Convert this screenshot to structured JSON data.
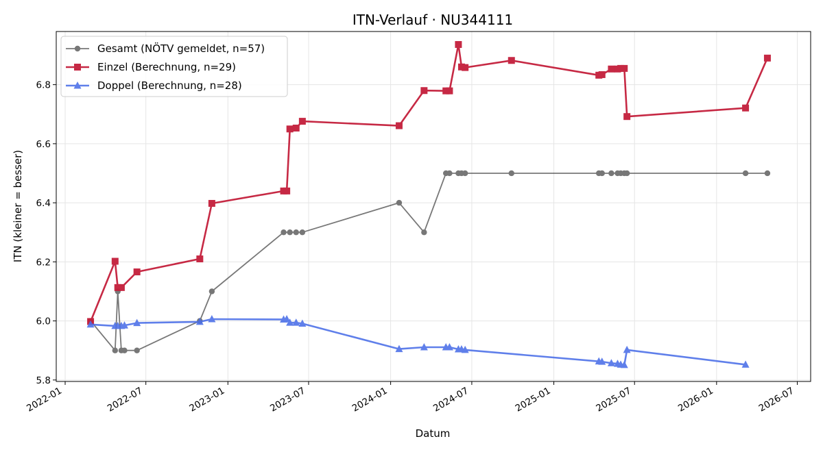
{
  "chart_data": {
    "type": "line",
    "title": "ITN-Verlauf · NU344111",
    "xlabel": "Datum",
    "ylabel": "ITN  (kleiner = besser)",
    "xlim": [
      "2021-12-12",
      "2026-07-31"
    ],
    "ylim": [
      5.795,
      6.98
    ],
    "x_ticks": [
      "2022-01",
      "2022-07",
      "2023-01",
      "2023-07",
      "2024-01",
      "2024-07",
      "2025-01",
      "2025-07",
      "2026-01",
      "2026-07"
    ],
    "y_ticks": [
      5.8,
      6.0,
      6.2,
      6.4,
      6.6,
      6.8
    ],
    "grid": true,
    "legend_position": "top-left",
    "series": [
      {
        "name": "Gesamt (NÖTV gemeldet, n=57)",
        "color": "#444444",
        "marker": "circle",
        "points": [
          {
            "x": "2022-02-27",
            "y": 6.0
          },
          {
            "x": "2022-04-23",
            "y": 5.9
          },
          {
            "x": "2022-04-29",
            "y": 6.1
          },
          {
            "x": "2022-05-07",
            "y": 5.9
          },
          {
            "x": "2022-05-14",
            "y": 5.9
          },
          {
            "x": "2022-06-11",
            "y": 5.9
          },
          {
            "x": "2022-10-30",
            "y": 6.0
          },
          {
            "x": "2022-11-26",
            "y": 6.1
          },
          {
            "x": "2023-05-06",
            "y": 6.3
          },
          {
            "x": "2023-05-20",
            "y": 6.3
          },
          {
            "x": "2023-06-03",
            "y": 6.3
          },
          {
            "x": "2023-06-17",
            "y": 6.3
          },
          {
            "x": "2024-01-20",
            "y": 6.4
          },
          {
            "x": "2024-03-16",
            "y": 6.3
          },
          {
            "x": "2024-05-04",
            "y": 6.5
          },
          {
            "x": "2024-05-12",
            "y": 6.5
          },
          {
            "x": "2024-06-01",
            "y": 6.5
          },
          {
            "x": "2024-06-08",
            "y": 6.5
          },
          {
            "x": "2024-06-16",
            "y": 6.5
          },
          {
            "x": "2024-09-28",
            "y": 6.5
          },
          {
            "x": "2025-04-12",
            "y": 6.5
          },
          {
            "x": "2025-04-19",
            "y": 6.5
          },
          {
            "x": "2025-05-10",
            "y": 6.5
          },
          {
            "x": "2025-05-24",
            "y": 6.5
          },
          {
            "x": "2025-05-31",
            "y": 6.5
          },
          {
            "x": "2025-06-08",
            "y": 6.5
          },
          {
            "x": "2025-06-14",
            "y": 6.5
          },
          {
            "x": "2026-03-07",
            "y": 6.5
          },
          {
            "x": "2026-04-25",
            "y": 6.5
          }
        ]
      },
      {
        "name": "Einzel (Berechnung, n=29)",
        "color": "#c41e3a",
        "marker": "square",
        "points": [
          {
            "x": "2022-02-27",
            "y": 5.998
          },
          {
            "x": "2022-04-23",
            "y": 6.202
          },
          {
            "x": "2022-04-29",
            "y": 6.113
          },
          {
            "x": "2022-05-07",
            "y": 6.113
          },
          {
            "x": "2022-06-11",
            "y": 6.166
          },
          {
            "x": "2022-10-30",
            "y": 6.21
          },
          {
            "x": "2022-11-26",
            "y": 6.398
          },
          {
            "x": "2023-05-06",
            "y": 6.44
          },
          {
            "x": "2023-05-13",
            "y": 6.44
          },
          {
            "x": "2023-05-20",
            "y": 6.65
          },
          {
            "x": "2023-06-03",
            "y": 6.653
          },
          {
            "x": "2023-06-17",
            "y": 6.676
          },
          {
            "x": "2024-01-20",
            "y": 6.661
          },
          {
            "x": "2024-03-16",
            "y": 6.78
          },
          {
            "x": "2024-05-04",
            "y": 6.779
          },
          {
            "x": "2024-05-12",
            "y": 6.779
          },
          {
            "x": "2024-06-01",
            "y": 6.936
          },
          {
            "x": "2024-06-08",
            "y": 6.86
          },
          {
            "x": "2024-06-16",
            "y": 6.858
          },
          {
            "x": "2024-09-28",
            "y": 6.882
          },
          {
            "x": "2025-04-12",
            "y": 6.832
          },
          {
            "x": "2025-04-19",
            "y": 6.834
          },
          {
            "x": "2025-05-10",
            "y": 6.853
          },
          {
            "x": "2025-05-24",
            "y": 6.853
          },
          {
            "x": "2025-05-31",
            "y": 6.855
          },
          {
            "x": "2025-06-08",
            "y": 6.855
          },
          {
            "x": "2025-06-14",
            "y": 6.692
          },
          {
            "x": "2026-03-07",
            "y": 6.721
          },
          {
            "x": "2026-04-25",
            "y": 6.89
          }
        ]
      },
      {
        "name": "Doppel (Berechnung, n=28)",
        "color": "#4a6ee8",
        "marker": "triangle",
        "points": [
          {
            "x": "2022-02-27",
            "y": 5.988
          },
          {
            "x": "2022-04-23",
            "y": 5.983
          },
          {
            "x": "2022-04-29",
            "y": 5.983
          },
          {
            "x": "2022-05-07",
            "y": 5.983
          },
          {
            "x": "2022-05-14",
            "y": 5.985
          },
          {
            "x": "2022-06-11",
            "y": 5.993
          },
          {
            "x": "2022-10-30",
            "y": 5.997
          },
          {
            "x": "2022-11-26",
            "y": 6.006
          },
          {
            "x": "2023-05-06",
            "y": 6.005
          },
          {
            "x": "2023-05-13",
            "y": 6.006
          },
          {
            "x": "2023-05-20",
            "y": 5.994
          },
          {
            "x": "2023-06-03",
            "y": 5.994
          },
          {
            "x": "2023-06-17",
            "y": 5.991
          },
          {
            "x": "2024-01-20",
            "y": 5.905
          },
          {
            "x": "2024-03-16",
            "y": 5.911
          },
          {
            "x": "2024-05-04",
            "y": 5.911
          },
          {
            "x": "2024-05-12",
            "y": 5.911
          },
          {
            "x": "2024-06-01",
            "y": 5.904
          },
          {
            "x": "2024-06-08",
            "y": 5.904
          },
          {
            "x": "2024-06-16",
            "y": 5.902
          },
          {
            "x": "2025-04-12",
            "y": 5.863
          },
          {
            "x": "2025-04-19",
            "y": 5.862
          },
          {
            "x": "2025-05-10",
            "y": 5.857
          },
          {
            "x": "2025-05-24",
            "y": 5.855
          },
          {
            "x": "2025-05-31",
            "y": 5.852
          },
          {
            "x": "2025-06-08",
            "y": 5.851
          },
          {
            "x": "2025-06-14",
            "y": 5.902
          },
          {
            "x": "2026-03-07",
            "y": 5.852
          }
        ]
      }
    ]
  }
}
